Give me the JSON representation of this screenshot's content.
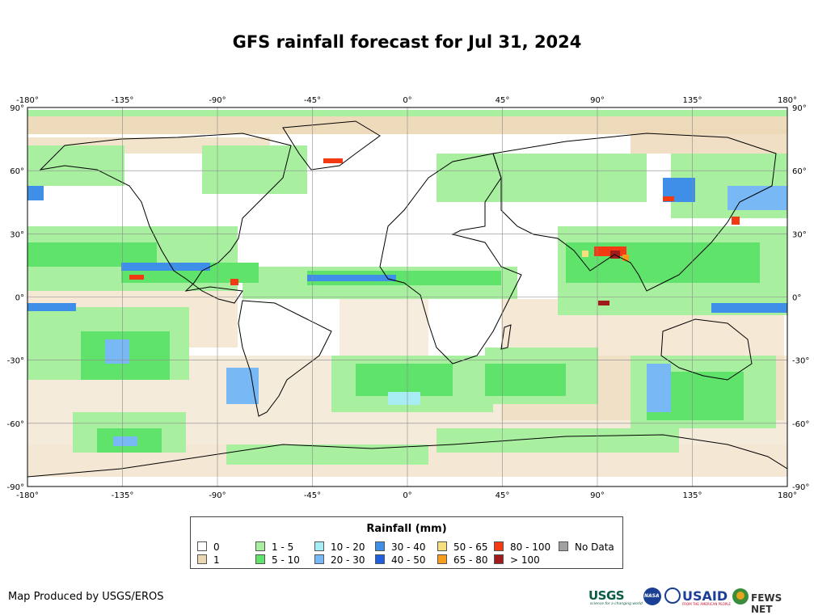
{
  "title": "GFS rainfall forecast for Jul 31, 2024",
  "map": {
    "projection": "equirectangular",
    "lon_range": [
      -180,
      180
    ],
    "lat_range": [
      -90,
      90
    ],
    "lon_ticks": [
      "-180°",
      "-135°",
      "-90°",
      "-45°",
      "0°",
      "45°",
      "90°",
      "135°",
      "180°"
    ],
    "lat_ticks": [
      "90°",
      "60°",
      "30°",
      "0°",
      "-30°",
      "-60°",
      "-90°"
    ],
    "colors": {
      "ocean": "#ffffff",
      "land_outline": "#000000",
      "graticule": "#8a8a8a"
    }
  },
  "legend": {
    "title": "Rainfall (mm)",
    "items": [
      {
        "label": "0",
        "color": "#ffffff"
      },
      {
        "label": "1",
        "color": "#ecd7b5"
      },
      {
        "label": "1 - 5",
        "color": "#a8f0a0"
      },
      {
        "label": "5 - 10",
        "color": "#5fe36a"
      },
      {
        "label": "10 - 20",
        "color": "#a8ecf4"
      },
      {
        "label": "20 - 30",
        "color": "#78b8f4"
      },
      {
        "label": "30 - 40",
        "color": "#3f8ee8"
      },
      {
        "label": "40 - 50",
        "color": "#1f5ee0"
      },
      {
        "label": "50 - 65",
        "color": "#f6df7e"
      },
      {
        "label": "65 - 80",
        "color": "#f59c1c"
      },
      {
        "label": "80 - 100",
        "color": "#f43a12"
      },
      {
        "label": "> 100",
        "color": "#a01c1c"
      },
      {
        "label": "No Data",
        "color": "#a0a0a0"
      }
    ]
  },
  "footer": {
    "credit": "Map Produced by USGS/EROS",
    "logos": {
      "usgs": "USGS",
      "usgs_tagline": "science for a changing world",
      "nasa": "NASA",
      "usaid": "USAID",
      "usaid_tagline": "FROM THE AMERICAN PEOPLE",
      "fews": "FEWS NET"
    }
  }
}
